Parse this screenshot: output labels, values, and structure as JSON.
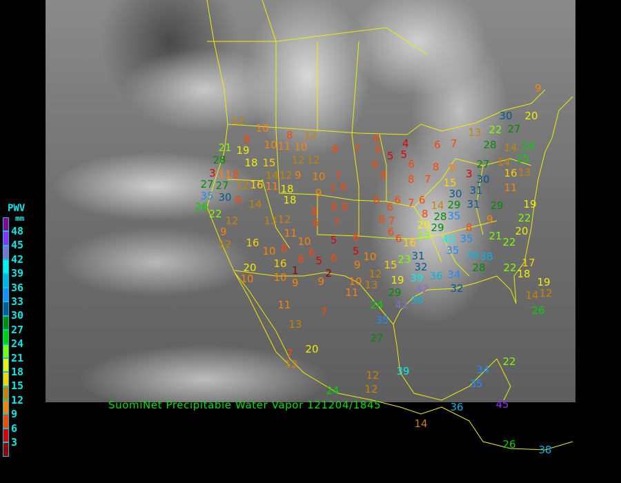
{
  "title": "SuomiNet Precipitable Water Vapor 121204/1845",
  "legend": {
    "label": "PWV",
    "unit": "mm",
    "ticks": [
      "48",
      "45",
      "42",
      "39",
      "36",
      "33",
      "30",
      "27",
      "24",
      "21",
      "18",
      "15",
      "12",
      "9",
      "6",
      "3"
    ],
    "colors": [
      "#8b0090",
      "#9030ff",
      "#8070d0",
      "#00f0f0",
      "#00b4e6",
      "#1e8cff",
      "#005a96",
      "#008c00",
      "#00d200",
      "#80ff00",
      "#f0f000",
      "#ffd200",
      "#c88200",
      "#ff8200",
      "#ff4600",
      "#dc0000",
      "#960000"
    ]
  },
  "stations": [
    9,
    30,
    20,
    22,
    27,
    12,
    10,
    8,
    12,
    8,
    10,
    11,
    10,
    8,
    7,
    6,
    6,
    5,
    4,
    5,
    6,
    7,
    13,
    28,
    14,
    24,
    21,
    19,
    28,
    18,
    15,
    12,
    12,
    6,
    6,
    8,
    9,
    3,
    27,
    14,
    25,
    16,
    13,
    3,
    11,
    8,
    14,
    12,
    9,
    10,
    7,
    8,
    8,
    7,
    30,
    31,
    11,
    27,
    27,
    12,
    16,
    11,
    18,
    7,
    8,
    9,
    15,
    35,
    30,
    6,
    14,
    18,
    6,
    6,
    7,
    6,
    14,
    30,
    31,
    29,
    29,
    19,
    26,
    22,
    12,
    13,
    12,
    8,
    6,
    6,
    6,
    8,
    28,
    35,
    9,
    22,
    6,
    7,
    6,
    7,
    20,
    29,
    8,
    9,
    11,
    10,
    6,
    6,
    6,
    23,
    40,
    35,
    21,
    22,
    20,
    12,
    16,
    10,
    8,
    6,
    5,
    5,
    10,
    16,
    35,
    36,
    38,
    20,
    16,
    1,
    8,
    5,
    6,
    9,
    15,
    23,
    31,
    32,
    22,
    17,
    18,
    10,
    10,
    9,
    9,
    2,
    12,
    19,
    39,
    36,
    34,
    28,
    10,
    13,
    11,
    29,
    42,
    32,
    19,
    14,
    12,
    11,
    7,
    24,
    42,
    38,
    35,
    26,
    13,
    27,
    20,
    7,
    12,
    22,
    39,
    34,
    35,
    12,
    12,
    24,
    45,
    36,
    14,
    26,
    38
  ]
}
